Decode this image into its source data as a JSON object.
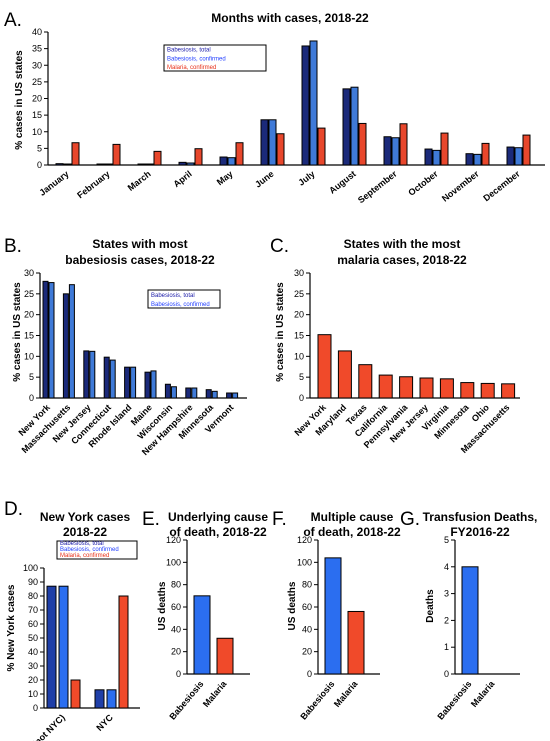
{
  "colors": {
    "babesiosis_total": "#1f3fa8",
    "babesiosis_confirmed": "#1f3fa8",
    "malaria_confirmed": "#e8472c",
    "babesiosis_bright": "#2b6ef0",
    "malaria_bright": "#f04a2a",
    "dark_blue": "#1b2a7a",
    "light_blue": "#3f7ad8",
    "legend_total": "#1a1aa8",
    "legend_confirmed": "#2440ff",
    "legend_malaria": "#e83018"
  },
  "panels": [
    {
      "letter": "A.",
      "title": [
        "Months with cases, 2018-22"
      ]
    },
    {
      "letter": "B.",
      "title": [
        "States with most",
        "babesiosis cases, 2018-22"
      ]
    },
    {
      "letter": "C.",
      "title": [
        "States with the most",
        "malaria cases, 2018-22"
      ]
    },
    {
      "letter": "D.",
      "title": [
        "New York cases",
        "2018-22"
      ]
    },
    {
      "letter": "E.",
      "title": [
        "Underlying cause",
        "of death, 2018-22"
      ]
    },
    {
      "letter": "F.",
      "title": [
        "Multiple cause",
        "of death, 2018-22"
      ]
    },
    {
      "letter": "G.",
      "title": [
        "Transfusion Deaths,",
        "FY2016-22"
      ]
    }
  ],
  "chart_data": [
    {
      "type": "bar",
      "title": "Months with cases, 2018-22",
      "ylabel": "% cases in US states",
      "ylim": [
        0,
        40
      ],
      "yticks": [
        0,
        5,
        10,
        15,
        20,
        25,
        30,
        35,
        40
      ],
      "categories": [
        "January",
        "February",
        "March",
        "April",
        "May",
        "June",
        "July",
        "August",
        "September",
        "October",
        "November",
        "December"
      ],
      "series": [
        {
          "name": "Babesiosis, total",
          "values": [
            0.4,
            0.3,
            0.3,
            0.8,
            2.4,
            13.6,
            35.8,
            22.9,
            8.5,
            4.8,
            3.4,
            5.4
          ]
        },
        {
          "name": "Babesiosis, confirmed",
          "values": [
            0.3,
            0.3,
            0.3,
            0.6,
            2.2,
            13.6,
            37.3,
            23.4,
            8.2,
            4.4,
            3.2,
            5.2
          ]
        },
        {
          "name": "Malaria, confirmed",
          "values": [
            6.7,
            6.2,
            4.1,
            4.9,
            6.7,
            9.4,
            11.1,
            12.5,
            12.4,
            9.6,
            6.5,
            9.0
          ]
        }
      ],
      "legend": [
        "Babesiosis, total",
        "Babesiosis, confirmed",
        "Malaria, confirmed"
      ],
      "legend_position": "top-center"
    },
    {
      "type": "bar",
      "title": "States with most babesiosis cases, 2018-22",
      "ylabel": "% cases in US states",
      "ylim": [
        0,
        30
      ],
      "yticks": [
        0,
        5,
        10,
        15,
        20,
        25,
        30
      ],
      "categories": [
        "New York",
        "Massachusetts",
        "New Jersey",
        "Connecticut",
        "Rhode Island",
        "Maine",
        "Wisconsin",
        "New Hampshire",
        "Minnesota",
        "Vermont"
      ],
      "series": [
        {
          "name": "Babesiosis, total",
          "values": [
            28.0,
            25.0,
            11.3,
            9.8,
            7.4,
            6.2,
            3.3,
            2.4,
            2.0,
            1.2
          ]
        },
        {
          "name": "Babesiosis, confirmed",
          "values": [
            27.7,
            27.2,
            11.2,
            9.1,
            7.4,
            6.5,
            2.7,
            2.4,
            1.6,
            1.2
          ]
        }
      ],
      "legend": [
        "Babesiosis, total",
        "Babesiosis, confirmed"
      ],
      "legend_position": "top-right"
    },
    {
      "type": "bar",
      "title": "States with the most malaria cases, 2018-22",
      "ylabel": "% cases in US states",
      "ylim": [
        0,
        30
      ],
      "yticks": [
        0,
        5,
        10,
        15,
        20,
        25,
        30
      ],
      "categories": [
        "New York",
        "Maryland",
        "Texas",
        "California",
        "Pennsylvania",
        "New Jersey",
        "Virginia",
        "Minnesota",
        "Ohio",
        "Massachusetts"
      ],
      "series": [
        {
          "name": "Malaria, confirmed",
          "values": [
            15.2,
            11.3,
            8.0,
            5.5,
            5.1,
            4.8,
            4.6,
            3.7,
            3.5,
            3.4
          ]
        }
      ]
    },
    {
      "type": "bar",
      "title": "New York cases 2018-22",
      "ylabel": "% New York cases",
      "ylim": [
        0,
        100
      ],
      "yticks": [
        0,
        10,
        20,
        30,
        40,
        50,
        60,
        70,
        80,
        90,
        100
      ],
      "categories": [
        "NY (not NYC)",
        "NYC"
      ],
      "series": [
        {
          "name": "Babesiosis, total",
          "values": [
            87,
            13
          ]
        },
        {
          "name": "Babesiosis, confirmed",
          "values": [
            87,
            13
          ]
        },
        {
          "name": "Malaria, confirmed",
          "values": [
            20,
            80
          ]
        }
      ],
      "legend": [
        "Babesiosis, total",
        "Babesiosis, confirmed",
        "Malaria, confirmed"
      ],
      "legend_position": "top"
    },
    {
      "type": "bar",
      "title": "Underlying cause of death, 2018-22",
      "ylabel": "US deaths",
      "ylim": [
        0,
        120
      ],
      "yticks": [
        0,
        20,
        40,
        60,
        80,
        100,
        120
      ],
      "categories": [
        "Babesiosis",
        "Malaria"
      ],
      "values": [
        70,
        32
      ]
    },
    {
      "type": "bar",
      "title": "Multiple cause of death, 2018-22",
      "ylabel": "US deaths",
      "ylim": [
        0,
        120
      ],
      "yticks": [
        0,
        20,
        40,
        60,
        80,
        100,
        120
      ],
      "categories": [
        "Babesiosis",
        "Malaria"
      ],
      "values": [
        104,
        56
      ]
    },
    {
      "type": "bar",
      "title": "Transfusion Deaths, FY2016-22",
      "ylabel": "Deaths",
      "ylim": [
        0,
        5
      ],
      "yticks": [
        0,
        1,
        2,
        3,
        4,
        5
      ],
      "categories": [
        "Babesiosis",
        "Malaria"
      ],
      "values": [
        4,
        0
      ]
    }
  ]
}
